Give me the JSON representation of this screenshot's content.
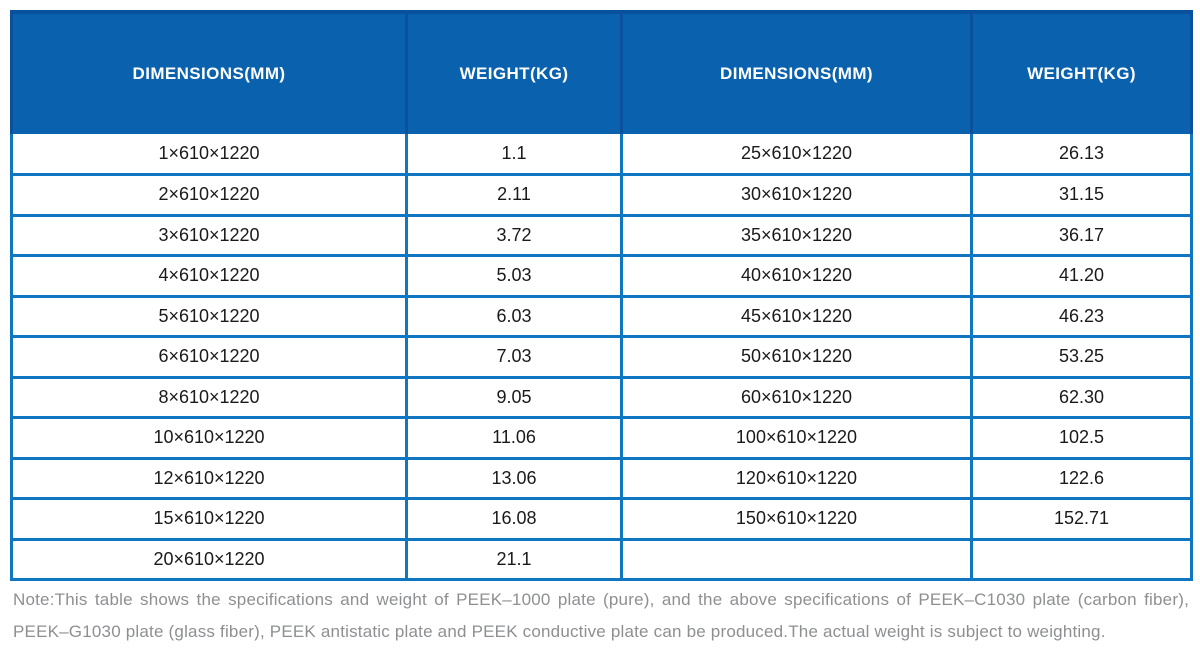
{
  "colors": {
    "header_bg": "#0a61ae",
    "header_line": "#09509d",
    "grid_line": "#0f76c1",
    "cell_text": "#1a1a1a",
    "note_text": "#8d8f92",
    "header_text": "#ffffff"
  },
  "table": {
    "headers": [
      "DIMENSIONS(MM)",
      "WEIGHT(KG)",
      "DIMENSIONS(MM)",
      "WEIGHT(KG)"
    ],
    "rows": [
      [
        "1×610×1220",
        "1.1",
        "25×610×1220",
        "26.13"
      ],
      [
        "2×610×1220",
        "2.11",
        "30×610×1220",
        "31.15"
      ],
      [
        "3×610×1220",
        "3.72",
        "35×610×1220",
        "36.17"
      ],
      [
        "4×610×1220",
        "5.03",
        "40×610×1220",
        "41.20"
      ],
      [
        "5×610×1220",
        "6.03",
        "45×610×1220",
        "46.23"
      ],
      [
        "6×610×1220",
        "7.03",
        "50×610×1220",
        "53.25"
      ],
      [
        "8×610×1220",
        "9.05",
        "60×610×1220",
        "62.30"
      ],
      [
        "10×610×1220",
        "11.06",
        "100×610×1220",
        "102.5"
      ],
      [
        "12×610×1220",
        "13.06",
        "120×610×1220",
        "122.6"
      ],
      [
        "15×610×1220",
        "16.08",
        "150×610×1220",
        "152.71"
      ],
      [
        "20×610×1220",
        "21.1",
        "",
        ""
      ]
    ]
  },
  "note": "Note:This table shows the specifications and weight of PEEK–1000 plate (pure), and the above specifications of PEEK–C1030 plate (carbon fiber), PEEK–G1030 plate (glass fiber), PEEK antistatic plate and PEEK conductive plate can be produced.The actual weight is subject to weighting."
}
